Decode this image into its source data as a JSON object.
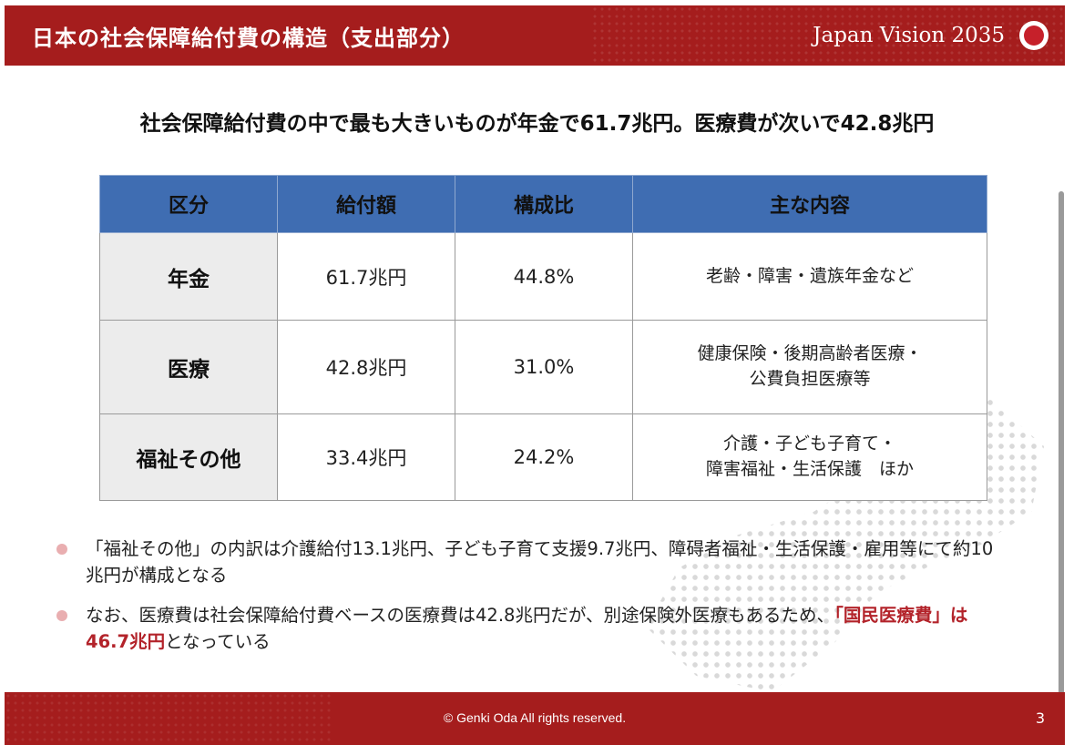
{
  "header": {
    "title": "日本の社会保障給付費の構造（支出部分）",
    "brand": "Japan Vision 2035",
    "logo_icon": "red-circle-logo-icon"
  },
  "headline": "社会保障給付費の中で最も大きいものが年金で61.7兆円。医療費が次いで42.8兆円",
  "table": {
    "headers": [
      "区分",
      "給付額",
      "構成比",
      "主な内容"
    ],
    "rows": [
      {
        "category": "年金",
        "amount": "61.7兆円",
        "ratio": "44.8%",
        "content_line1": "老齢・障害・遺族年金など",
        "content_line2": ""
      },
      {
        "category": "医療",
        "amount": "42.8兆円",
        "ratio": "31.0%",
        "content_line1": "健康保険・後期高齢者医療・",
        "content_line2": "公費負担医療等"
      },
      {
        "category": "福祉その他",
        "amount": "33.4兆円",
        "ratio": "24.2%",
        "content_line1": "介護・子ども子育て・",
        "content_line2": "障害福祉・生活保護　ほか"
      }
    ]
  },
  "bullets": [
    {
      "text": "「福祉その他」の内訳は介護給付13.1兆円、子ども子育て支援9.7兆円、障碍者福祉・生活保護・雇用等にて約10兆円が構成となる"
    },
    {
      "text_before": "なお、医療費は社会保障給付費ベースの医療費は42.8兆円だが、別途保険外医療もあるため、",
      "highlight": "「国民医療費」は46.7兆円",
      "text_after": "となっている"
    }
  ],
  "footer": {
    "copyright": "© Genki Oda All rights reserved.",
    "page_number": "3"
  },
  "colors": {
    "brand_red": "#a51d1d",
    "table_header_blue": "#3f6db2",
    "highlight_red": "#b3232a",
    "bullet_pink": "#e9aeb0"
  }
}
